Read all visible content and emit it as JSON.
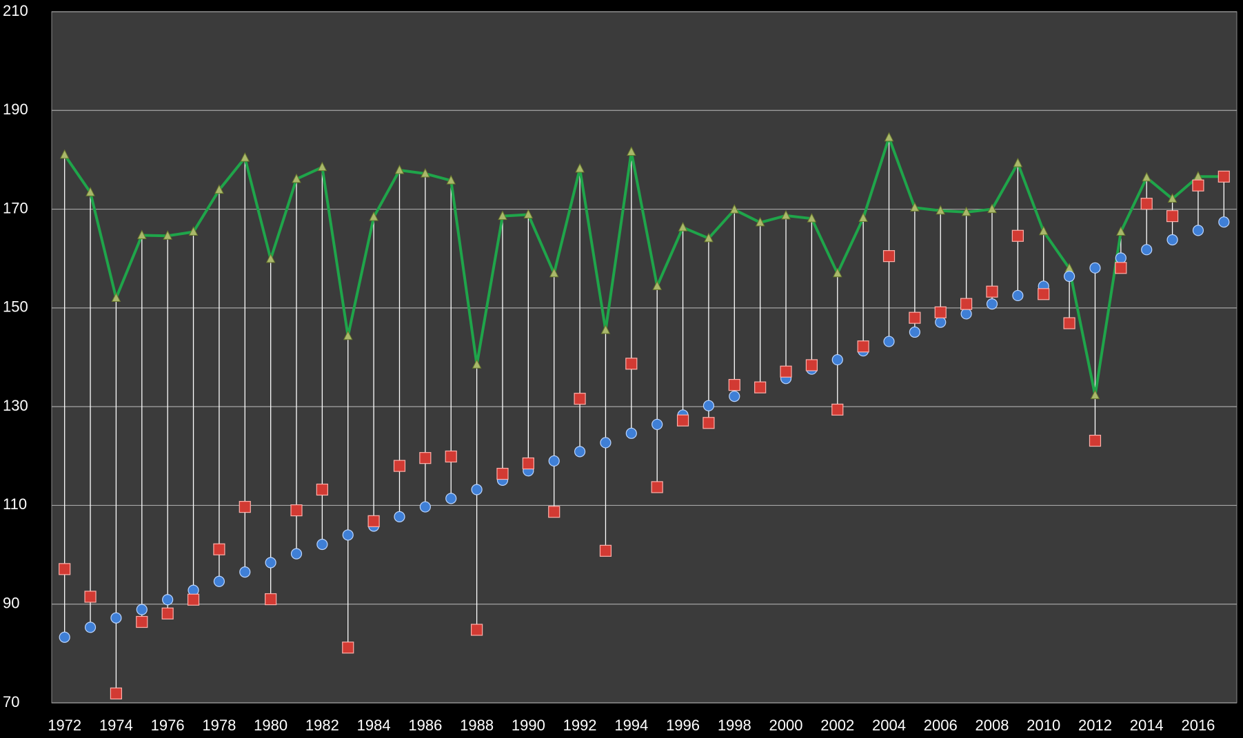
{
  "chart_data": {
    "type": "line",
    "categories": [
      "1972",
      null,
      "1974",
      null,
      "1976",
      null,
      "1978",
      null,
      "1980",
      null,
      "1982",
      null,
      "1984",
      null,
      "1986",
      null,
      "1988",
      null,
      "1990",
      null,
      "1992",
      null,
      "1994",
      null,
      "1996",
      null,
      "1998",
      null,
      "2000",
      null,
      "2002",
      null,
      "2004",
      null,
      "2006",
      null,
      "2008",
      null,
      "2010",
      null,
      "2012",
      null,
      "2014",
      null,
      "2016",
      null
    ],
    "series": [
      {
        "color": "#1fa54a",
        "marker": "triangle",
        "line": true,
        "values": [
          181,
          173.4,
          152,
          164.7,
          164.6,
          165.4,
          173.9,
          180.4,
          159.9,
          176.1,
          178.5,
          144.3,
          168.4,
          177.9,
          177.2,
          175.8,
          138.5,
          168.6,
          168.9,
          157,
          178.2,
          145.5,
          181.6,
          154.4,
          166.3,
          164.1,
          169.9,
          167.3,
          168.7,
          168.1,
          157,
          168.2,
          184.5,
          170.3,
          169.7,
          169.4,
          170,
          179.3,
          165.5,
          158,
          132.3,
          165.4,
          176.4,
          172.1,
          176.6,
          176.6
        ]
      },
      {
        "color": "#3f7fd6",
        "marker": "circle",
        "line": false,
        "values": [
          83.3,
          85.3,
          87.2,
          88.9,
          90.9,
          92.8,
          94.6,
          96.5,
          98.4,
          100.2,
          102.1,
          104,
          105.8,
          107.7,
          109.7,
          111.4,
          113.2,
          115.1,
          117,
          119,
          120.9,
          122.7,
          124.6,
          126.4,
          128.3,
          130.2,
          132.1,
          133.9,
          135.7,
          137.6,
          139.5,
          141.3,
          143.2,
          145.1,
          147.1,
          148.8,
          150.8,
          152.5,
          154.4,
          156.4,
          158.1,
          160.1,
          161.8,
          163.8,
          165.7,
          167.4
        ]
      },
      {
        "color": "#d23a33",
        "marker": "square",
        "line": false,
        "values": [
          97.1,
          91.5,
          71.9,
          86.4,
          88.1,
          90.9,
          101.1,
          109.7,
          91,
          109,
          113.2,
          81.2,
          106.8,
          118,
          119.6,
          119.9,
          84.8,
          116.4,
          118.5,
          108.7,
          131.6,
          100.8,
          138.7,
          113.7,
          127.2,
          126.7,
          134.4,
          133.9,
          137.1,
          138.4,
          129.4,
          142.2,
          160.5,
          148,
          149.1,
          150.8,
          153.3,
          164.6,
          152.8,
          146.9,
          123.1,
          158.1,
          171.1,
          168.6,
          174.8,
          176.6
        ]
      }
    ],
    "high_low_lines": true,
    "ylim": [
      70,
      210
    ],
    "yticks": [
      70,
      90,
      110,
      130,
      150,
      170,
      190,
      210
    ],
    "grid": true
  }
}
